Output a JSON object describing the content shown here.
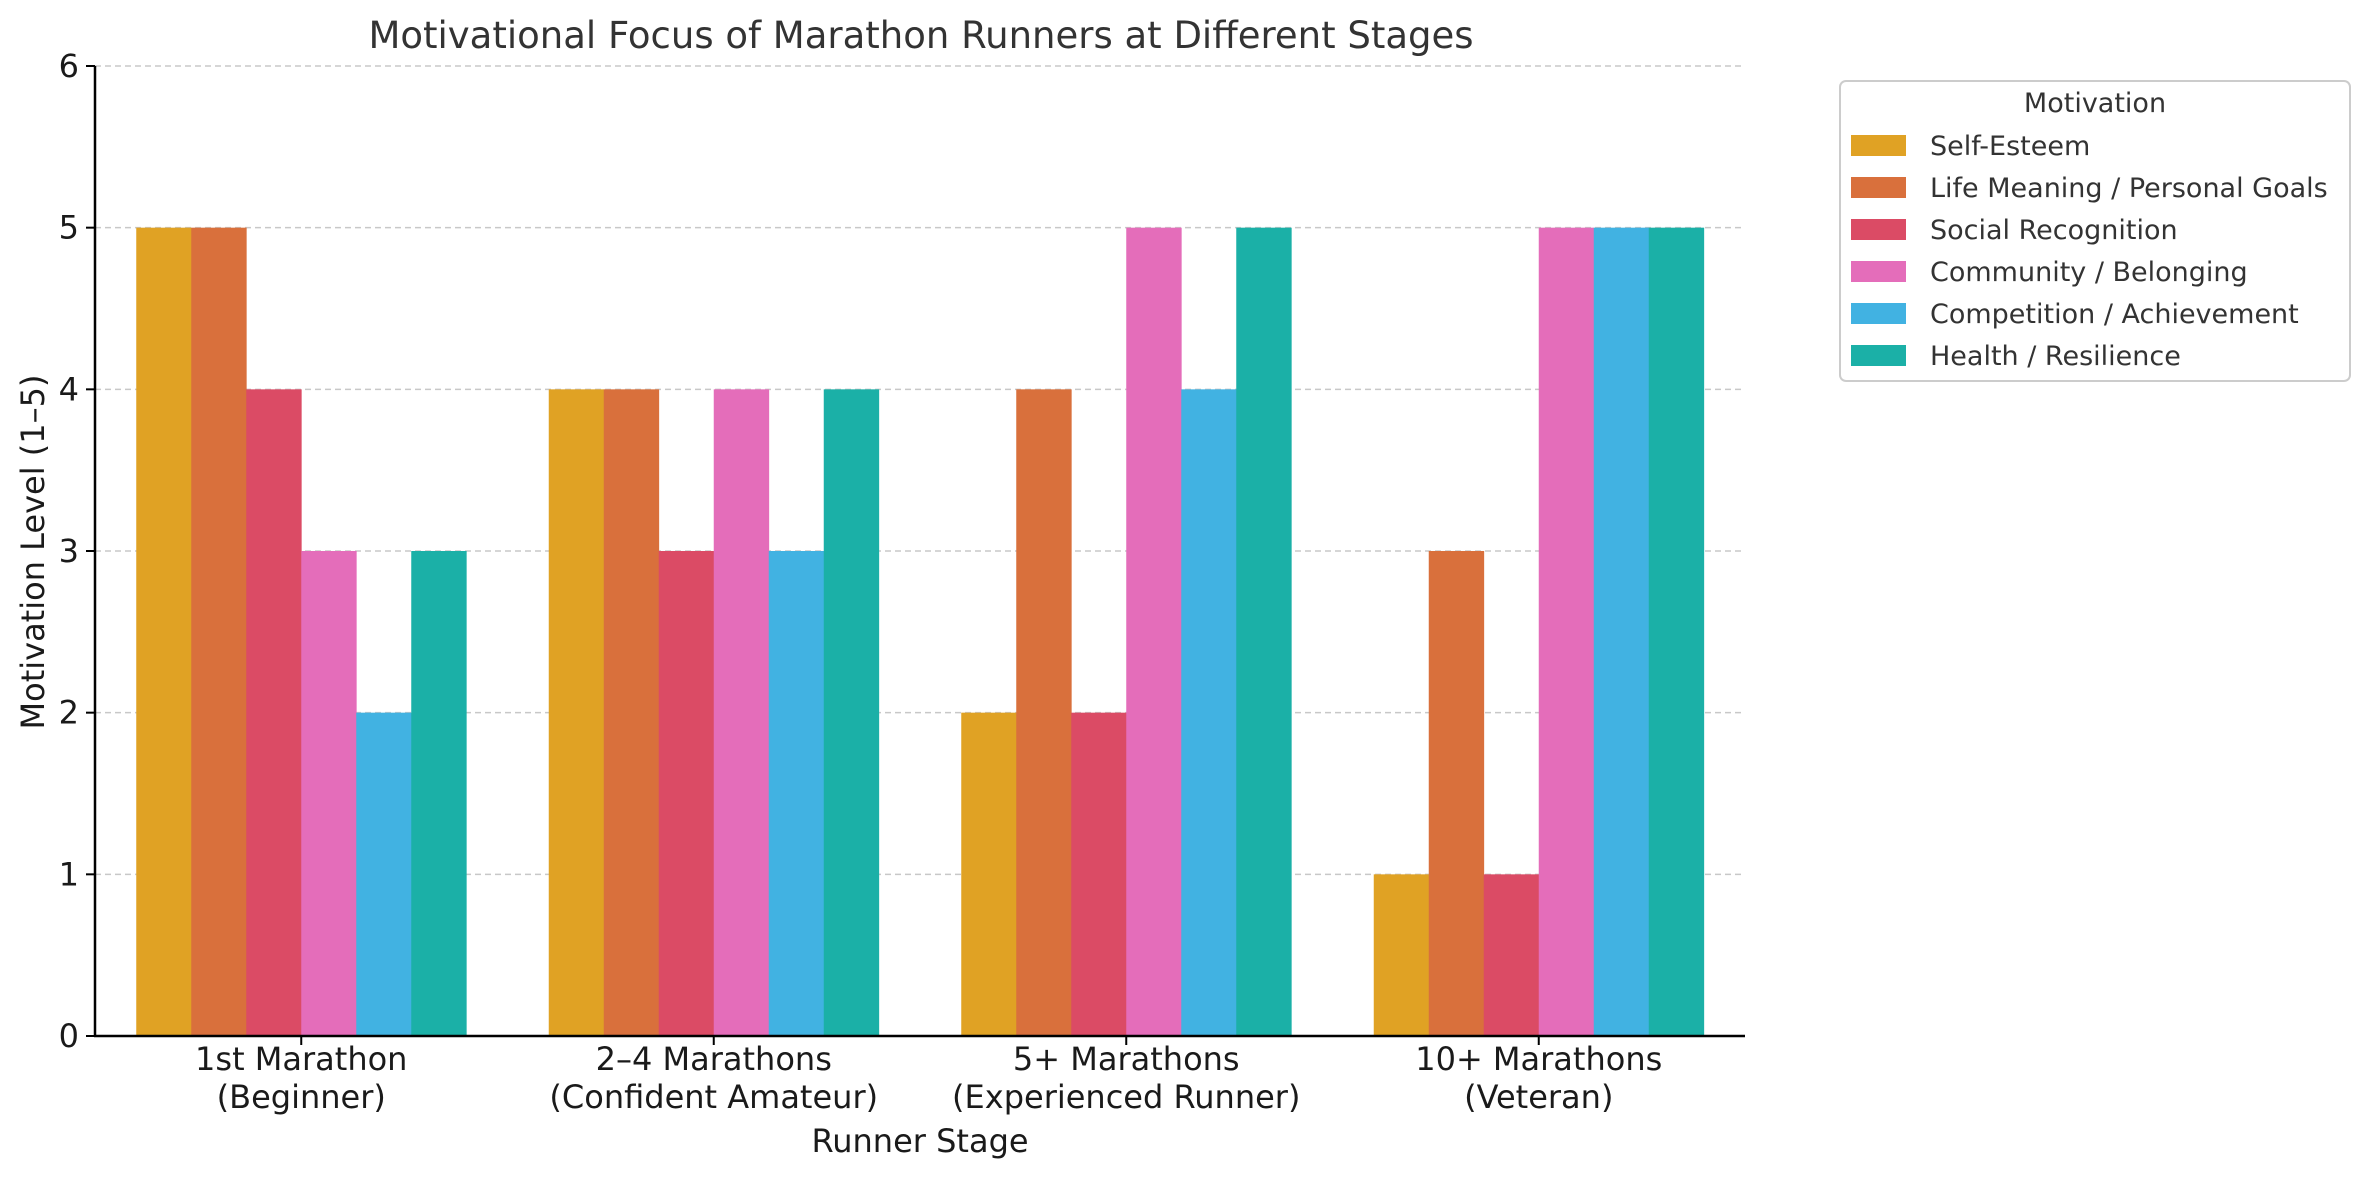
{
  "chart_data": {
    "type": "bar",
    "title": "Motivational Focus of Marathon Runners at Different Stages",
    "xlabel": "Runner Stage",
    "ylabel": "Motivation Level (1–5)",
    "ylim": [
      0,
      6
    ],
    "yticks": [
      "0",
      "1",
      "2",
      "3",
      "4",
      "5",
      "6"
    ],
    "grid": "horizontal, dashed",
    "legend_placement": "outside upper-right",
    "legend_title": "Motivation",
    "categories": [
      [
        "1st Marathon",
        "(Beginner)"
      ],
      [
        "2–4 Marathons",
        "(Confident Amateur)"
      ],
      [
        "5+ Marathons",
        "(Experienced Runner)"
      ],
      [
        "10+ Marathons",
        "(Veteran)"
      ]
    ],
    "series": [
      {
        "name": "Self-Esteem",
        "color": "#E0A224",
        "values": [
          5,
          4,
          2,
          1
        ]
      },
      {
        "name": "Life Meaning / Personal Goals",
        "color": "#D9703C",
        "values": [
          5,
          4,
          4,
          3
        ]
      },
      {
        "name": "Social Recognition",
        "color": "#DB4B65",
        "values": [
          4,
          3,
          2,
          1
        ]
      },
      {
        "name": "Community / Belonging",
        "color": "#E46DBA",
        "values": [
          3,
          4,
          5,
          5
        ]
      },
      {
        "name": "Competition / Achievement",
        "color": "#41B2E2",
        "values": [
          2,
          3,
          4,
          5
        ]
      },
      {
        "name": "Health / Resilience",
        "color": "#1BB0A7",
        "values": [
          3,
          4,
          5,
          5
        ]
      }
    ]
  }
}
